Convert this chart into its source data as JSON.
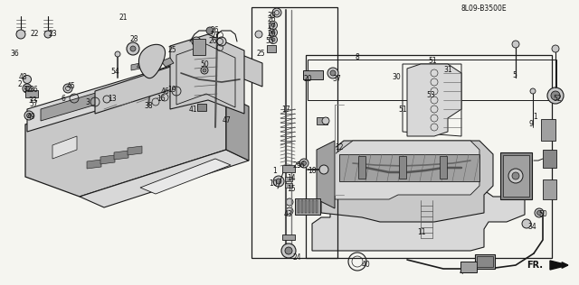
{
  "bg_color": "#f5f5f0",
  "diagram_code": "8L09-B3500E",
  "fig_width": 6.4,
  "fig_height": 3.16,
  "dpi": 100,
  "fr_label": "FR.",
  "line_color": "#1a1a1a",
  "text_color": "#111111",
  "font_size": 5.5,
  "gray1": "#c8c8c8",
  "gray2": "#a0a0a0",
  "gray3": "#888888",
  "gray4": "#d8d8d8",
  "gray5": "#b0b0b0"
}
